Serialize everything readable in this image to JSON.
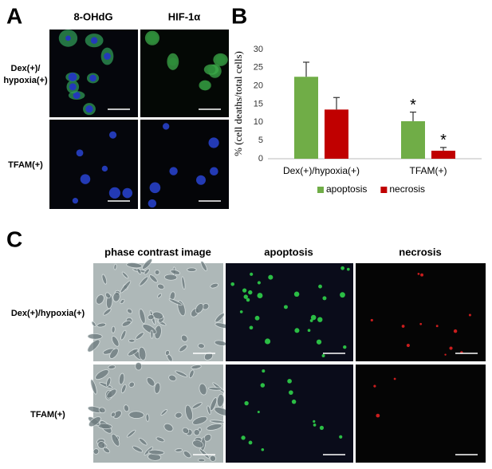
{
  "panel_labels": [
    "A",
    "B",
    "C"
  ],
  "panel_a": {
    "columns": [
      "8-OHdG",
      "HIF-1α"
    ],
    "rows": [
      [
        "Dex(+)/",
        "hypoxia(+)"
      ],
      [
        "TFAM(+)"
      ]
    ]
  },
  "panel_c": {
    "columns": [
      "phase contrast image",
      "apoptosis",
      "necrosis"
    ],
    "rows": [
      "Dex(+)/hypoxia(+)",
      "TFAM(+)"
    ]
  },
  "chart_data": {
    "type": "bar",
    "ylabel": "% (cell deaths/total cells)",
    "categories": [
      "Dex(+)/hypoxia(+)",
      "TFAM(+)"
    ],
    "series": [
      {
        "name": "apoptosis",
        "color": "#70ad47",
        "values": [
          22.5,
          10.3
        ],
        "errors": [
          4,
          2.5
        ]
      },
      {
        "name": "necrosis",
        "color": "#c00000",
        "values": [
          13.5,
          2.2
        ],
        "errors": [
          3.3,
          0.9
        ]
      }
    ],
    "annotations": [
      "*",
      "*"
    ],
    "ylim": [
      0,
      30
    ],
    "yticks": [
      0,
      5,
      10,
      15,
      20,
      25,
      30
    ],
    "grid": false,
    "legend": "bottom"
  }
}
